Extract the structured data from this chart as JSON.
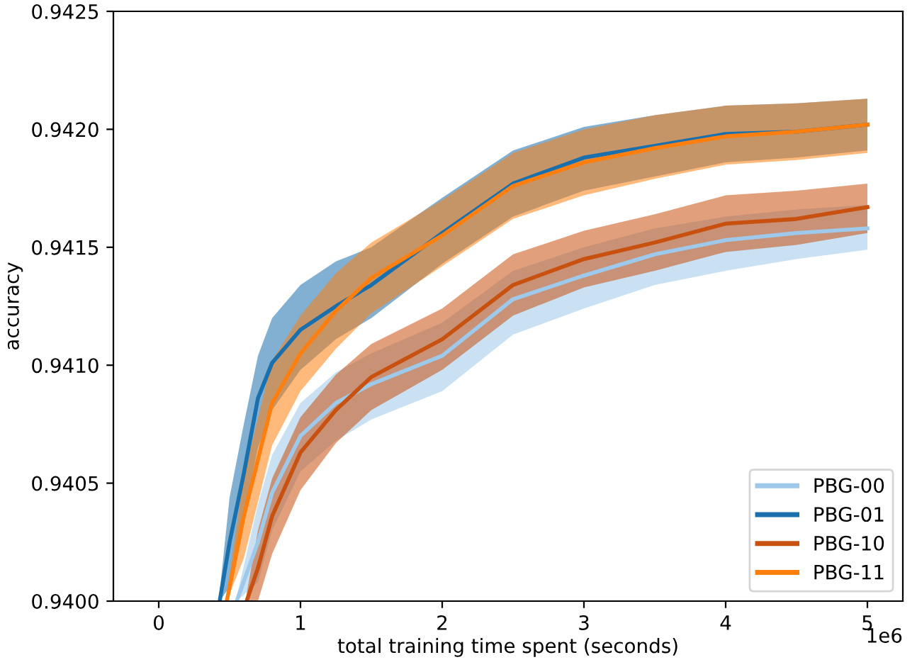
{
  "chart_data": {
    "type": "line",
    "xlabel": "total training time spent (seconds)",
    "ylabel": "accuracy",
    "xlim": [
      -0.32,
      5.25
    ],
    "xticks": [
      0,
      1,
      2,
      3,
      4,
      5
    ],
    "ylim": [
      0.94,
      0.9425
    ],
    "yticks": [
      {
        "value": 0.94,
        "label": "0.9400"
      },
      {
        "value": 0.9405,
        "label": "0.9405"
      },
      {
        "value": 0.941,
        "label": "0.9410"
      },
      {
        "value": 0.9415,
        "label": "0.9415"
      },
      {
        "value": 0.942,
        "label": "0.9420"
      },
      {
        "value": 0.9425,
        "label": "0.9425"
      }
    ],
    "annotations": [
      "1e6"
    ],
    "legend": "bottom right",
    "grid": false,
    "marker": "none",
    "line_style": "solid",
    "series": [
      {
        "name": "PBG-00",
        "color": "#9ec9ea",
        "x": [
          0.55,
          0.7,
          0.8,
          1.0,
          1.25,
          1.5,
          2.0,
          2.5,
          3.0,
          3.5,
          4.0,
          4.5,
          5.0
        ],
        "values": [
          0.94,
          0.94025,
          0.94046,
          0.9407,
          0.94084,
          0.94092,
          0.94104,
          0.94128,
          0.94138,
          0.94147,
          0.94153,
          0.94156,
          0.94158
        ],
        "lower": [
          0.94,
          0.94008,
          0.9403,
          0.94055,
          0.94068,
          0.94077,
          0.94089,
          0.94113,
          0.94124,
          0.94134,
          0.9414,
          0.94145,
          0.94149
        ],
        "upper": [
          0.94002,
          0.94041,
          0.94062,
          0.94084,
          0.94097,
          0.94105,
          0.94118,
          0.9414,
          0.9415,
          0.94158,
          0.94163,
          0.94166,
          0.94168
        ]
      },
      {
        "name": "PBG-01",
        "color": "#1a6fad",
        "x": [
          0.43,
          0.5,
          0.6,
          0.7,
          0.8,
          1.0,
          1.25,
          1.5,
          2.0,
          2.5,
          3.0,
          3.5,
          4.0,
          4.5,
          5.0
        ],
        "values": [
          0.94,
          0.94025,
          0.94054,
          0.94086,
          0.94101,
          0.94115,
          0.94125,
          0.94134,
          0.94156,
          0.94177,
          0.94188,
          0.94193,
          0.94198,
          0.94199,
          0.94202
        ],
        "lower": [
          0.94,
          0.94006,
          0.94036,
          0.94065,
          0.94081,
          0.94098,
          0.94111,
          0.9412,
          0.94143,
          0.94163,
          0.94174,
          0.9418,
          0.94186,
          0.94188,
          0.94191
        ],
        "upper": [
          0.94004,
          0.94044,
          0.94075,
          0.94104,
          0.9412,
          0.94134,
          0.94144,
          0.9415,
          0.94171,
          0.94191,
          0.94201,
          0.94206,
          0.9421,
          0.94211,
          0.94213
        ]
      },
      {
        "name": "PBG-10",
        "color": "#c8510f",
        "x": [
          0.62,
          0.7,
          0.8,
          1.0,
          1.25,
          1.5,
          2.0,
          2.5,
          3.0,
          3.5,
          4.0,
          4.5,
          5.0
        ],
        "values": [
          0.94,
          0.94014,
          0.94036,
          0.94063,
          0.94081,
          0.94095,
          0.94111,
          0.94134,
          0.94145,
          0.94152,
          0.9416,
          0.94162,
          0.94167
        ],
        "lower": [
          0.94,
          0.94,
          0.9402,
          0.94047,
          0.94067,
          0.94081,
          0.94098,
          0.94121,
          0.94133,
          0.9414,
          0.94148,
          0.94151,
          0.94156
        ],
        "upper": [
          0.94003,
          0.9403,
          0.94052,
          0.94078,
          0.94096,
          0.94109,
          0.94124,
          0.94147,
          0.94157,
          0.94164,
          0.94172,
          0.94174,
          0.94177
        ]
      },
      {
        "name": "PBG-11",
        "color": "#ff7f0e",
        "x": [
          0.48,
          0.6,
          0.8,
          1.0,
          1.25,
          1.5,
          2.0,
          2.5,
          3.0,
          3.5,
          4.0,
          4.5,
          5.0
        ],
        "values": [
          0.94,
          0.94036,
          0.94084,
          0.94105,
          0.94123,
          0.94137,
          0.94155,
          0.94176,
          0.94186,
          0.94192,
          0.94197,
          0.94199,
          0.94202
        ],
        "lower": [
          0.94,
          0.94018,
          0.94066,
          0.94089,
          0.94107,
          0.94122,
          0.94142,
          0.94162,
          0.94172,
          0.94179,
          0.94185,
          0.94187,
          0.9419
        ],
        "upper": [
          0.94003,
          0.94053,
          0.94102,
          0.94121,
          0.94139,
          0.94152,
          0.9417,
          0.9419,
          0.942,
          0.94206,
          0.9421,
          0.94211,
          0.94213
        ]
      }
    ]
  }
}
